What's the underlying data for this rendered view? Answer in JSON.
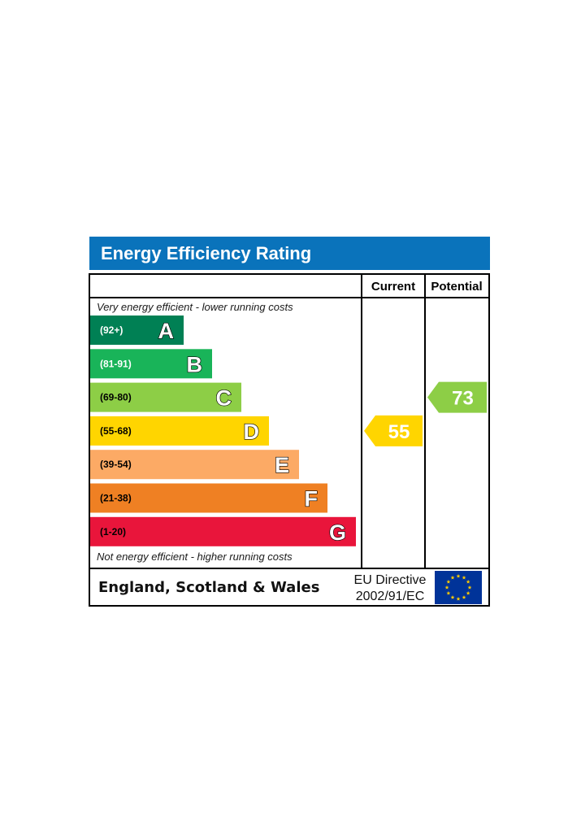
{
  "chart_data": {
    "type": "bar",
    "title": "Energy Efficiency Rating",
    "columns": [
      "Current",
      "Potential"
    ],
    "top_note": "Very energy efficient - lower running costs",
    "bottom_note": "Not energy efficient - higher running costs",
    "bands": [
      {
        "letter": "A",
        "range": "(92+)",
        "color": "#008054"
      },
      {
        "letter": "B",
        "range": "(81-91)",
        "color": "#19b459"
      },
      {
        "letter": "C",
        "range": "(69-80)",
        "color": "#8dce46"
      },
      {
        "letter": "D",
        "range": "(55-68)",
        "color": "#ffd500"
      },
      {
        "letter": "E",
        "range": "(39-54)",
        "color": "#fcaa65"
      },
      {
        "letter": "F",
        "range": "(21-38)",
        "color": "#ef8023"
      },
      {
        "letter": "G",
        "range": "(1-20)",
        "color": "#e9153b"
      }
    ],
    "ratings": {
      "current": {
        "value": 55,
        "color": "#ffd500"
      },
      "potential": {
        "value": 73,
        "color": "#8dce46"
      }
    },
    "footer": {
      "region": "England, Scotland & Wales",
      "directive_line1": "EU Directive",
      "directive_line2": "2002/91/EC"
    }
  },
  "colors": {
    "title_bar": "#0a73bb",
    "eu_flag": "#003399",
    "eu_stars": "#ffcc00"
  }
}
